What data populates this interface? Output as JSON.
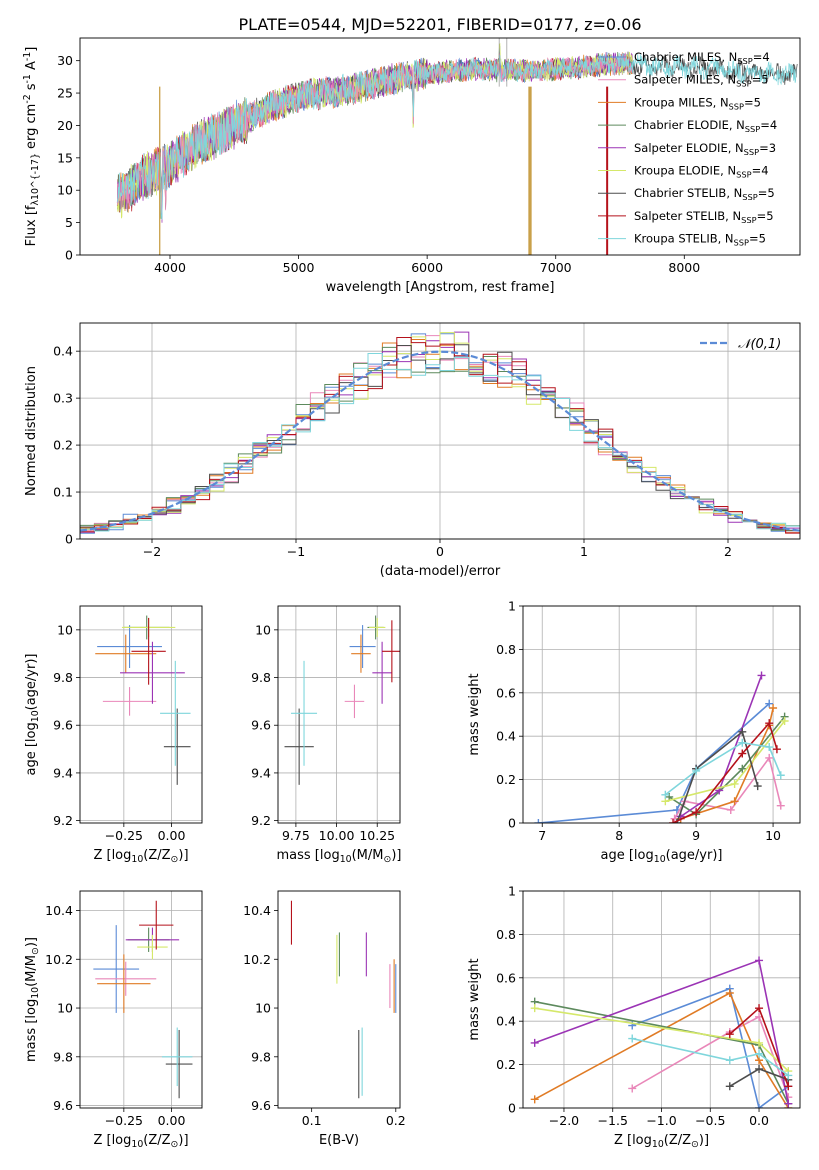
{
  "figure": {
    "title": "PLATE=0544, MJD=52201, FIBERID=0177, z=0.06"
  },
  "models": [
    {
      "name": "Chabrier MILES, N_{SSP}=4",
      "imf": "Chabrier",
      "lib": "MILES",
      "nssp": "4",
      "color": "#5b8bd6"
    },
    {
      "name": "Salpeter MILES, N_{SSP}=5",
      "imf": "Salpeter",
      "lib": "MILES",
      "nssp": "5",
      "color": "#e987b9"
    },
    {
      "name": "Kroupa MILES, N_{SSP}=5",
      "imf": "Kroupa",
      "lib": "MILES",
      "nssp": "5",
      "color": "#e07b25"
    },
    {
      "name": "Chabrier ELODIE, N_{SSP}=4",
      "imf": "Chabrier",
      "lib": "ELODIE",
      "nssp": "4",
      "color": "#5d8a5d"
    },
    {
      "name": "Salpeter ELODIE, N_{SSP}=3",
      "imf": "Salpeter",
      "lib": "ELODIE",
      "nssp": "3",
      "color": "#9b34b5"
    },
    {
      "name": "Kroupa ELODIE, N_{SSP}=4",
      "imf": "Kroupa",
      "lib": "ELODIE",
      "nssp": "4",
      "color": "#d5e86a"
    },
    {
      "name": "Chabrier STELIB, N_{SSP}=5",
      "imf": "Chabrier",
      "lib": "STELIB",
      "nssp": "5",
      "color": "#4d4d4d"
    },
    {
      "name": "Salpeter STELIB, N_{SSP}=5",
      "imf": "Salpeter",
      "lib": "STELIB",
      "nssp": "5",
      "color": "#b5121b"
    },
    {
      "name": "Kroupa STELIB, N_{SSP}=5",
      "imf": "Kroupa",
      "lib": "STELIB",
      "nssp": "5",
      "color": "#7fd6dc"
    }
  ],
  "chart_data": [
    {
      "id": "spectrum",
      "type": "line",
      "xlabel": "wavelength [Angstrom, rest frame]",
      "ylabel": "Flux [f_λ10^{-17} erg cm^{-2} s^{-1} A^{-1}]",
      "xlim": [
        3300,
        8900
      ],
      "ylim": [
        0,
        33.5
      ],
      "xticks": [
        4000,
        5000,
        6000,
        7000,
        8000
      ],
      "yticks": [
        0,
        5,
        10,
        15,
        20,
        25,
        30
      ],
      "grid": false,
      "legend": "right",
      "continuum_x": [
        3600,
        3800,
        4000,
        4200,
        4400,
        4600,
        4800,
        5000,
        5200,
        5400,
        5600,
        5800,
        6000,
        6200,
        6400,
        6600,
        6800,
        7000,
        7200,
        7400,
        7600,
        7800,
        8000,
        8200,
        8400,
        8600,
        8800
      ],
      "continuum_y": [
        9,
        12,
        14,
        17,
        19,
        21,
        23,
        24.5,
        25,
        25.5,
        26.5,
        27.5,
        28,
        28.3,
        28.7,
        28.5,
        28.5,
        28.7,
        29,
        29.5,
        29.5,
        29,
        29,
        28.8,
        28.5,
        28,
        28
      ]
    },
    {
      "id": "residuals",
      "type": "step",
      "xlabel": "(data-model)/error",
      "ylabel": "Normed distribution",
      "xlim": [
        -2.5,
        2.5
      ],
      "ylim": [
        0,
        0.46
      ],
      "xticks": [
        -2,
        -1,
        0,
        1,
        2
      ],
      "yticks": [
        0,
        0.1,
        0.2,
        0.3,
        0.4
      ],
      "grid": true,
      "legend": "top-right",
      "reference": {
        "label": "𝒩(0,1)",
        "color": "#5b8bd6",
        "mean": 0,
        "sigma": 1
      }
    },
    {
      "id": "age_vs_Z",
      "type": "errorbar",
      "xlabel": "Z [log_{10}(Z/Z_⊙)]",
      "ylabel": "age  [log_{10}(age/yr)]",
      "xlim": [
        -0.48,
        0.16
      ],
      "ylim": [
        9.19,
        10.1
      ],
      "xticks": [
        -0.25,
        0.0
      ],
      "xticklabels": [
        "−0.25",
        "0.00"
      ],
      "yticks": [
        9.2,
        9.4,
        9.6,
        9.8,
        10.0
      ],
      "grid": true,
      "points": [
        {
          "x": -0.22,
          "y": 9.93,
          "xerr": 0.17,
          "yerr": 0.09
        },
        {
          "x": -0.22,
          "y": 9.7,
          "xerr": 0.14,
          "yerr": 0.06
        },
        {
          "x": -0.24,
          "y": 9.9,
          "xerr": 0.16,
          "yerr": 0.08
        },
        {
          "x": -0.13,
          "y": 10.01,
          "xerr": 0.12,
          "yerr": 0.05
        },
        {
          "x": -0.1,
          "y": 9.82,
          "xerr": 0.17,
          "yerr": 0.13
        },
        {
          "x": -0.12,
          "y": 10.01,
          "xerr": 0.14,
          "yerr": 0.04
        },
        {
          "x": 0.03,
          "y": 9.51,
          "xerr": 0.07,
          "yerr": 0.16
        },
        {
          "x": -0.12,
          "y": 9.91,
          "xerr": 0.09,
          "yerr": 0.14
        },
        {
          "x": 0.02,
          "y": 9.65,
          "xerr": 0.08,
          "yerr": 0.22
        }
      ]
    },
    {
      "id": "age_vs_mass",
      "type": "errorbar",
      "xlabel": "mass [log_{10}(M/M_⊙)]",
      "ylabel": "",
      "xlim": [
        9.64,
        10.39
      ],
      "ylim": [
        9.19,
        10.1
      ],
      "xticks": [
        9.75,
        10.0,
        10.25
      ],
      "xticklabels": [
        "9.75",
        "10.00",
        "10.25"
      ],
      "yticks": [
        9.2,
        9.4,
        9.6,
        9.8,
        10.0
      ],
      "grid": true,
      "points": [
        {
          "x": 10.16,
          "y": 9.93,
          "xerr": 0.08,
          "yerr": 0.09
        },
        {
          "x": 10.11,
          "y": 9.7,
          "xerr": 0.06,
          "yerr": 0.07
        },
        {
          "x": 10.15,
          "y": 9.9,
          "xerr": 0.06,
          "yerr": 0.08
        },
        {
          "x": 10.24,
          "y": 10.01,
          "xerr": 0.05,
          "yerr": 0.05
        },
        {
          "x": 10.28,
          "y": 9.82,
          "xerr": 0.06,
          "yerr": 0.13
        },
        {
          "x": 10.25,
          "y": 10.01,
          "xerr": 0.05,
          "yerr": 0.04
        },
        {
          "x": 9.77,
          "y": 9.51,
          "xerr": 0.09,
          "yerr": 0.16
        },
        {
          "x": 10.34,
          "y": 9.91,
          "xerr": 0.06,
          "yerr": 0.13
        },
        {
          "x": 9.8,
          "y": 9.65,
          "xerr": 0.08,
          "yerr": 0.22
        }
      ]
    },
    {
      "id": "weight_vs_age",
      "type": "line",
      "xlabel": "age  [log_{10}(age/yr)]",
      "ylabel": "mass weight",
      "xlim": [
        6.75,
        10.35
      ],
      "ylim": [
        0,
        1
      ],
      "xticks": [
        7,
        8,
        9,
        10
      ],
      "yticks": [
        0,
        0.2,
        0.4,
        0.6,
        0.8,
        1.0
      ],
      "grid": true,
      "series": [
        {
          "x": [
            6.95,
            8.75,
            9.0,
            9.95
          ],
          "y": [
            0.0,
            0.06,
            0.25,
            0.55
          ]
        },
        {
          "x": [
            8.72,
            8.85,
            9.45,
            9.95,
            10.1
          ],
          "y": [
            0.02,
            0.1,
            0.06,
            0.3,
            0.08
          ]
        },
        {
          "x": [
            8.8,
            9.5,
            9.95,
            10.0
          ],
          "y": [
            0.02,
            0.1,
            0.45,
            0.53
          ]
        },
        {
          "x": [
            8.65,
            9.0,
            9.6,
            10.15
          ],
          "y": [
            0.12,
            0.04,
            0.25,
            0.49
          ]
        },
        {
          "x": [
            8.8,
            9.3,
            9.85
          ],
          "y": [
            0.03,
            0.15,
            0.68
          ]
        },
        {
          "x": [
            8.6,
            9.5,
            10.15
          ],
          "y": [
            0.1,
            0.18,
            0.47
          ]
        },
        {
          "x": [
            8.75,
            9.0,
            9.6,
            9.8
          ],
          "y": [
            0.0,
            0.25,
            0.42,
            0.17
          ]
        },
        {
          "x": [
            8.7,
            9.0,
            9.6,
            9.95,
            10.05
          ],
          "y": [
            0.0,
            0.05,
            0.32,
            0.46,
            0.34
          ]
        },
        {
          "x": [
            8.6,
            9.0,
            9.6,
            9.95,
            10.1
          ],
          "y": [
            0.13,
            0.24,
            0.37,
            0.35,
            0.22
          ]
        }
      ]
    },
    {
      "id": "mass_vs_Z",
      "type": "errorbar",
      "xlabel": "Z [log_{10}(Z/Z_⊙)]",
      "ylabel": "mass [log_{10}(M/M_⊙)]",
      "xlim": [
        -0.48,
        0.16
      ],
      "ylim": [
        9.59,
        10.48
      ],
      "xticks": [
        -0.25,
        0.0
      ],
      "xticklabels": [
        "−0.25",
        "0.00"
      ],
      "yticks": [
        9.6,
        9.8,
        10.0,
        10.2,
        10.4
      ],
      "grid": true,
      "points": [
        {
          "x": -0.29,
          "y": 10.16,
          "xerr": 0.12,
          "yerr": 0.18
        },
        {
          "x": -0.24,
          "y": 10.12,
          "xerr": 0.16,
          "yerr": 0.07
        },
        {
          "x": -0.25,
          "y": 10.1,
          "xerr": 0.14,
          "yerr": 0.12
        },
        {
          "x": -0.12,
          "y": 10.28,
          "xerr": 0.11,
          "yerr": 0.05
        },
        {
          "x": -0.1,
          "y": 10.28,
          "xerr": 0.14,
          "yerr": 0.05
        },
        {
          "x": -0.1,
          "y": 10.25,
          "xerr": 0.08,
          "yerr": 0.05
        },
        {
          "x": 0.04,
          "y": 9.77,
          "xerr": 0.07,
          "yerr": 0.14
        },
        {
          "x": -0.08,
          "y": 10.34,
          "xerr": 0.09,
          "yerr": 0.1
        },
        {
          "x": 0.03,
          "y": 9.8,
          "xerr": 0.08,
          "yerr": 0.12
        }
      ]
    },
    {
      "id": "mass_vs_ebv",
      "type": "errorbar",
      "xlabel": "E(B-V)",
      "ylabel": "",
      "xlim": [
        0.06,
        0.205
      ],
      "ylim": [
        9.59,
        10.48
      ],
      "xticks": [
        0.1,
        0.2
      ],
      "xticklabels": [
        "0.1",
        "0.2"
      ],
      "yticks": [
        9.6,
        9.8,
        10.0,
        10.2,
        10.4
      ],
      "grid": false,
      "points": [
        {
          "x": 0.2,
          "y": 10.08,
          "xerr": 0.0,
          "yerr": 0.1
        },
        {
          "x": 0.193,
          "y": 10.09,
          "xerr": 0.0,
          "yerr": 0.09
        },
        {
          "x": 0.198,
          "y": 10.09,
          "xerr": 0.0,
          "yerr": 0.11
        },
        {
          "x": 0.133,
          "y": 10.22,
          "xerr": 0.0,
          "yerr": 0.09
        },
        {
          "x": 0.165,
          "y": 10.22,
          "xerr": 0.0,
          "yerr": 0.09
        },
        {
          "x": 0.13,
          "y": 10.2,
          "xerr": 0.0,
          "yerr": 0.1
        },
        {
          "x": 0.156,
          "y": 9.77,
          "xerr": 0.0,
          "yerr": 0.14
        },
        {
          "x": 0.076,
          "y": 10.35,
          "xerr": 0.0,
          "yerr": 0.09
        },
        {
          "x": 0.16,
          "y": 9.78,
          "xerr": 0.0,
          "yerr": 0.14
        }
      ]
    },
    {
      "id": "weight_vs_Z",
      "type": "line",
      "xlabel": "Z [log_{10}(Z/Z_⊙)]",
      "ylabel": "mass weight",
      "xlim": [
        -2.42,
        0.42
      ],
      "ylim": [
        0,
        1
      ],
      "xticks": [
        -2.0,
        -1.5,
        -1.0,
        -0.5,
        0.0
      ],
      "xticklabels": [
        "−2.0",
        "−1.5",
        "−1.0",
        "−0.5",
        "0.0"
      ],
      "yticks": [
        0,
        0.2,
        0.4,
        0.6,
        0.8,
        1.0
      ],
      "grid": true,
      "series": [
        {
          "x": [
            -1.3,
            -0.3,
            0.0,
            0.3
          ],
          "y": [
            0.38,
            0.55,
            0.0,
            0.1
          ]
        },
        {
          "x": [
            -1.3,
            -0.3,
            0.0,
            0.3
          ],
          "y": [
            0.09,
            0.35,
            0.42,
            0.05
          ]
        },
        {
          "x": [
            -2.3,
            -0.3,
            0.0,
            0.3
          ],
          "y": [
            0.04,
            0.53,
            0.22,
            0.0
          ]
        },
        {
          "x": [
            -2.3,
            0.0,
            0.3
          ],
          "y": [
            0.49,
            0.29,
            0.02
          ]
        },
        {
          "x": [
            -2.3,
            0.0,
            0.3
          ],
          "y": [
            0.3,
            0.68,
            0.02
          ]
        },
        {
          "x": [
            -2.3,
            0.0,
            0.3
          ],
          "y": [
            0.46,
            0.3,
            0.17
          ]
        },
        {
          "x": [
            -0.3,
            0.0,
            0.3
          ],
          "y": [
            0.1,
            0.18,
            0.13
          ]
        },
        {
          "x": [
            -0.3,
            0.0,
            0.3
          ],
          "y": [
            0.34,
            0.46,
            0.1
          ]
        },
        {
          "x": [
            -1.3,
            -0.3,
            0.0,
            0.3
          ],
          "y": [
            0.32,
            0.22,
            0.25,
            0.15
          ]
        }
      ]
    }
  ]
}
